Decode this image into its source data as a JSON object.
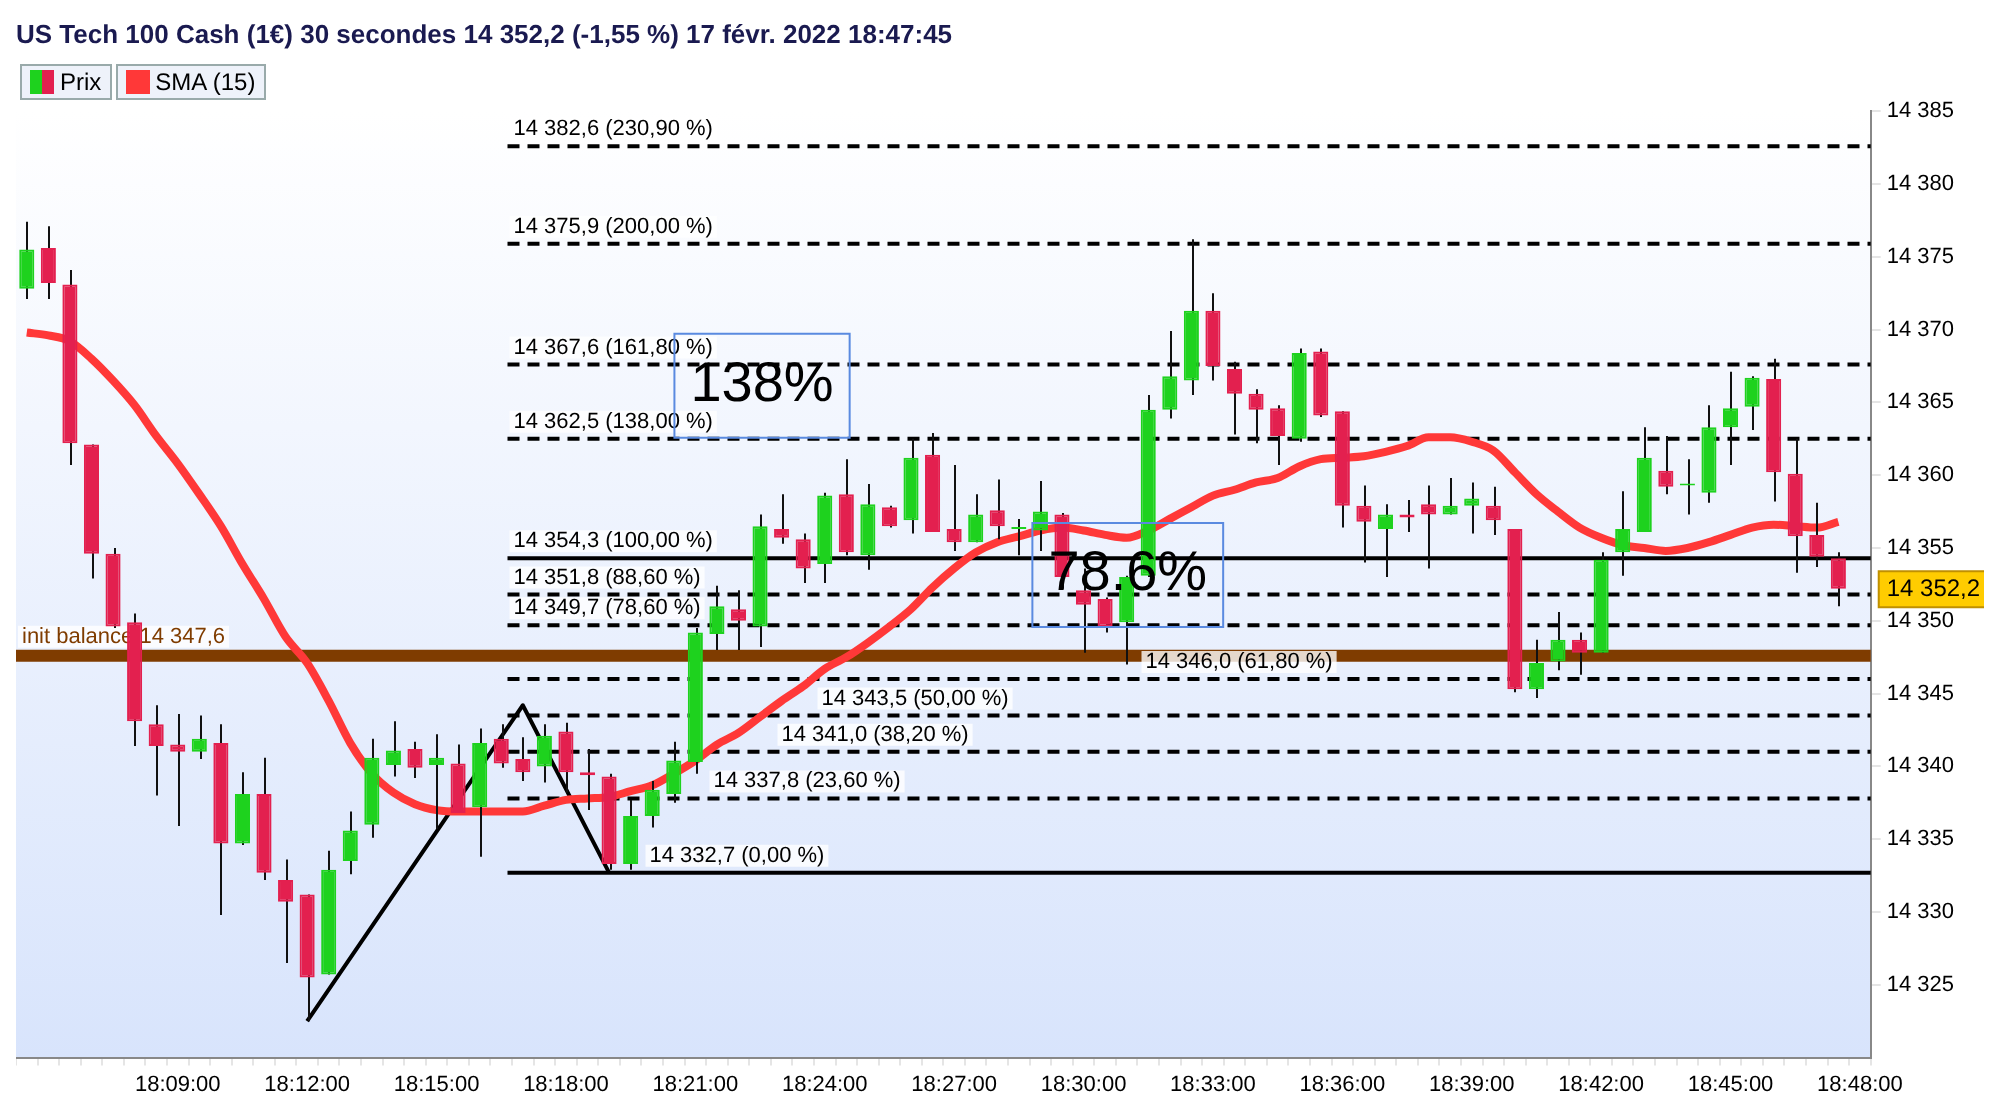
{
  "chart_data": {
    "type": "candlestick",
    "title": "US Tech 100 Cash (1€) 30 secondes 14 352,2 (-1,55 %) 17 févr. 2022 18:47:45",
    "categories": [
      null,
      null,
      null,
      null,
      null,
      null,
      null,
      "18:09:00",
      null,
      null,
      null,
      null,
      null,
      "18:12:00",
      null,
      null,
      null,
      null,
      null,
      "18:15:00",
      null,
      null,
      null,
      null,
      null,
      "18:18:00",
      null,
      null,
      null,
      null,
      null,
      "18:21:00",
      null,
      null,
      null,
      null,
      null,
      "18:24:00",
      null,
      null,
      null,
      null,
      null,
      "18:27:00",
      null,
      null,
      null,
      null,
      null,
      "18:30:00",
      null,
      null,
      null,
      null,
      null,
      "18:33:00",
      null,
      null,
      null,
      null,
      null,
      "18:36:00",
      null,
      null,
      null,
      null,
      null,
      "18:39:00",
      null,
      null,
      null,
      null,
      null,
      "18:42:00",
      null,
      null,
      null,
      null,
      null,
      "18:45:00",
      null,
      null,
      null,
      null,
      null,
      "18:48:00"
    ],
    "series": [
      {
        "name": "Prix",
        "type": "candlestick",
        "colors": [
          "#1ed21e",
          "#e3204f",
          "#e3204f",
          "#e3204f",
          "#e3204f",
          "#e3204f",
          "#e3204f",
          "#e3204f",
          "#1ed21e",
          "#e3204f",
          "#1ed21e",
          "#e3204f",
          "#e3204f",
          "#e3204f",
          "#1ed21e",
          "#1ed21e",
          "#1ed21e",
          "#1ed21e",
          "#e3204f",
          "#1ed21e",
          "#e3204f",
          "#1ed21e",
          "#e3204f",
          "#e3204f",
          "#1ed21e",
          "#e3204f",
          "#e3204f",
          "#e3204f",
          "#1ed21e",
          "#1ed21e",
          "#1ed21e",
          "#1ed21e",
          "#1ed21e",
          "#e3204f",
          "#1ed21e",
          "#e3204f",
          "#e3204f",
          "#1ed21e",
          "#e3204f",
          "#1ed21e",
          "#e3204f",
          "#1ed21e",
          "#e3204f",
          "#e3204f",
          "#1ed21e",
          "#e3204f",
          "#1ed21e",
          "#1ed21e",
          "#e3204f",
          "#e3204f",
          "#e3204f",
          "#1ed21e",
          "#1ed21e",
          "#1ed21e",
          "#1ed21e",
          "#e3204f",
          "#e3204f",
          "#e3204f",
          "#e3204f",
          "#1ed21e",
          "#e3204f",
          "#e3204f",
          "#e3204f",
          "#1ed21e",
          "#e3204f",
          "#e3204f",
          "#1ed21e",
          "#1ed21e",
          "#e3204f",
          "#e3204f",
          "#1ed21e",
          "#1ed21e",
          "#e3204f",
          "#1ed21e",
          "#1ed21e",
          "#1ed21e",
          "#e3204f",
          "#1ed21e",
          "#1ed21e",
          "#1ed21e",
          "#1ed21e",
          "#e3204f",
          "#e3204f",
          "#e3204f",
          "#e3204f",
          null
        ],
        "ohlc": [
          [
            14372.8,
            14377.4,
            14372.1,
            14375.5
          ],
          [
            14375.6,
            14377.1,
            14372.1,
            14373.2
          ],
          [
            14373.1,
            14374.1,
            14360.7,
            14362.2
          ],
          [
            14362.1,
            14362.1,
            14352.9,
            14354.6
          ],
          [
            14354.6,
            14355.0,
            14349.5,
            14349.6
          ],
          [
            14349.9,
            14350.5,
            14341.4,
            14343.1
          ],
          [
            14342.9,
            14344.2,
            14338.0,
            14341.4
          ],
          [
            14341.5,
            14343.6,
            14335.9,
            14341.0
          ],
          [
            14341.0,
            14343.5,
            14340.5,
            14341.9
          ],
          [
            14341.6,
            14342.9,
            14329.8,
            14334.7
          ],
          [
            14334.7,
            14339.6,
            14334.6,
            14338.1
          ],
          [
            14338.1,
            14340.6,
            14332.2,
            14332.7
          ],
          [
            14332.2,
            14333.6,
            14326.5,
            14330.7
          ],
          [
            14331.2,
            14331.2,
            14322.5,
            14325.5
          ],
          [
            14325.7,
            14334.2,
            14325.7,
            14332.9
          ],
          [
            14333.5,
            14336.9,
            14332.6,
            14335.6
          ],
          [
            14336.0,
            14341.9,
            14335.1,
            14340.6
          ],
          [
            14340.1,
            14343.1,
            14339.3,
            14341.1
          ],
          [
            14341.2,
            14341.7,
            14339.2,
            14339.9
          ],
          [
            14340.1,
            14342.2,
            14335.7,
            14340.6
          ],
          [
            14340.2,
            14341.5,
            14336.8,
            14336.8
          ],
          [
            14337.2,
            14342.6,
            14333.8,
            14341.6
          ],
          [
            14341.9,
            14342.9,
            14339.9,
            14340.2
          ],
          [
            14340.5,
            14342.0,
            14339.0,
            14339.6
          ],
          [
            14340.0,
            14342.9,
            14338.9,
            14342.1
          ],
          [
            14342.4,
            14343.0,
            14338.2,
            14339.6
          ],
          [
            14339.6,
            14341.2,
            14337.0,
            14339.4
          ],
          [
            14339.3,
            14339.5,
            14332.9,
            14333.3
          ],
          [
            14333.3,
            14337.7,
            14332.9,
            14336.6
          ],
          [
            14336.6,
            14339.0,
            14335.8,
            14338.4
          ],
          [
            14338.1,
            14341.7,
            14337.5,
            14340.4
          ],
          [
            14340.3,
            14349.5,
            14339.5,
            14349.2
          ],
          [
            14349.1,
            14352.4,
            14348.0,
            14351.0
          ],
          [
            14350.8,
            14352.1,
            14348.0,
            14350.0
          ],
          [
            14349.6,
            14357.3,
            14348.2,
            14356.5
          ],
          [
            14356.3,
            14358.7,
            14355.3,
            14355.7
          ],
          [
            14355.6,
            14356.0,
            14352.6,
            14353.6
          ],
          [
            14353.9,
            14358.8,
            14352.6,
            14358.6
          ],
          [
            14358.7,
            14361.1,
            14354.5,
            14354.7
          ],
          [
            14354.5,
            14359.4,
            14353.5,
            14358.0
          ],
          [
            14357.8,
            14357.9,
            14356.4,
            14356.5
          ],
          [
            14356.9,
            14362.5,
            14356.0,
            14361.2
          ],
          [
            14361.4,
            14362.9,
            14356.1,
            14356.1
          ],
          [
            14356.3,
            14360.7,
            14354.8,
            14355.4
          ],
          [
            14355.4,
            14358.7,
            14355.4,
            14357.3
          ],
          [
            14357.6,
            14359.7,
            14355.6,
            14356.5
          ],
          [
            14356.3,
            14357.0,
            14354.5,
            14356.3
          ],
          [
            14356.2,
            14359.6,
            14354.8,
            14357.5
          ],
          [
            14357.3,
            14357.4,
            14352.2,
            14353.0
          ],
          [
            14352.1,
            14353.6,
            14347.8,
            14351.1
          ],
          [
            14351.5,
            14351.6,
            14349.2,
            14349.6
          ],
          [
            14349.9,
            14353.1,
            14347.0,
            14353.0
          ],
          [
            14353.1,
            14365.5,
            14353.0,
            14364.5
          ],
          [
            14364.5,
            14369.9,
            14363.9,
            14366.8
          ],
          [
            14366.5,
            14376.2,
            14365.5,
            14371.3
          ],
          [
            14371.3,
            14372.5,
            14366.5,
            14367.5
          ],
          [
            14367.3,
            14367.8,
            14362.8,
            14365.6
          ],
          [
            14365.6,
            14365.9,
            14362.2,
            14364.5
          ],
          [
            14364.6,
            14364.8,
            14360.7,
            14362.7
          ],
          [
            14362.5,
            14368.7,
            14362.3,
            14368.4
          ],
          [
            14368.5,
            14368.7,
            14364.0,
            14364.1
          ],
          [
            14364.4,
            14364.4,
            14356.4,
            14357.9
          ],
          [
            14357.9,
            14359.3,
            14354.0,
            14356.8
          ],
          [
            14356.3,
            14358.0,
            14353.0,
            14357.3
          ],
          [
            14357.3,
            14358.3,
            14356.1,
            14357.1
          ],
          [
            14358.0,
            14359.3,
            14353.6,
            14357.3
          ],
          [
            14357.3,
            14359.8,
            14357.3,
            14357.9
          ],
          [
            14357.9,
            14359.5,
            14356.0,
            14358.4
          ],
          [
            14357.9,
            14359.2,
            14355.9,
            14356.9
          ],
          [
            14356.3,
            14356.3,
            14345.1,
            14345.3
          ],
          [
            14345.3,
            14348.7,
            14344.7,
            14347.1
          ],
          [
            14347.2,
            14350.6,
            14346.6,
            14348.7
          ],
          [
            14348.7,
            14349.2,
            14346.3,
            14347.8
          ],
          [
            14347.8,
            14354.7,
            14347.8,
            14354.2
          ],
          [
            14354.7,
            14358.9,
            14353.1,
            14356.3
          ],
          [
            14356.1,
            14363.3,
            14356.1,
            14361.2
          ],
          [
            14360.3,
            14362.7,
            14358.7,
            14359.2
          ],
          [
            14359.3,
            14361.1,
            14357.3,
            14359.3
          ],
          [
            14358.8,
            14364.8,
            14358.1,
            14363.3
          ],
          [
            14363.3,
            14367.1,
            14360.7,
            14364.6
          ],
          [
            14364.7,
            14366.8,
            14363.1,
            14366.7
          ],
          [
            14366.6,
            14368.0,
            14358.2,
            14360.2
          ],
          [
            14360.1,
            14362.5,
            14353.3,
            14355.8
          ],
          [
            14355.9,
            14358.1,
            14353.7,
            14354.4
          ],
          [
            14354.3,
            14354.7,
            14351.0,
            14352.2
          ],
          null
        ]
      },
      {
        "name": "SMA (15)",
        "type": "line",
        "color": "#ff3838",
        "values": [
          14369.8,
          14369.6,
          14369.2,
          14368.0,
          14366.5,
          14364.8,
          14362.7,
          14360.8,
          14358.7,
          14356.5,
          14353.9,
          14351.5,
          14348.9,
          14347.1,
          14344.5,
          14341.6,
          14339.5,
          14338.2,
          14337.4,
          14337.0,
          14336.9,
          14336.9,
          14336.9,
          14336.9,
          14337.3,
          14337.7,
          14337.8,
          14337.9,
          14338.3,
          14338.7,
          14339.5,
          14340.4,
          14341.5,
          14342.3,
          14343.4,
          14344.5,
          14345.5,
          14346.7,
          14347.5,
          14348.5,
          14349.6,
          14350.8,
          14352.3,
          14353.6,
          14354.7,
          14355.4,
          14355.8,
          14356.2,
          14356.4,
          14356.2,
          14355.9,
          14355.7,
          14356.2,
          14357.0,
          14357.8,
          14358.6,
          14359.0,
          14359.5,
          14359.8,
          14360.6,
          14361.1,
          14361.2,
          14361.3,
          14361.6,
          14362.0,
          14362.6,
          14362.6,
          14362.3,
          14361.7,
          14360.2,
          14358.7,
          14357.5,
          14356.4,
          14355.7,
          14355.2,
          14355.0,
          14354.8,
          14355.0,
          14355.4,
          14355.9,
          14356.4,
          14356.6,
          14356.5,
          14356.4,
          14356.8,
          null
        ]
      },
      {
        "type": "line",
        "color": "#000000",
        "values": [
          null,
          null,
          null,
          null,
          null,
          null,
          null,
          null,
          null,
          null,
          null,
          null,
          null,
          14322.5,
          null,
          null,
          null,
          null,
          null,
          null,
          null,
          null,
          null,
          14344.2,
          null,
          null,
          null,
          14332.7,
          null,
          null,
          null,
          null,
          null,
          null,
          null,
          null,
          null,
          null,
          null,
          null,
          null,
          null,
          null,
          null,
          null,
          null,
          null,
          null,
          null,
          null,
          null,
          null,
          null,
          null,
          null,
          null,
          null,
          null,
          null,
          null,
          null,
          null,
          null,
          null,
          null,
          null,
          null,
          null,
          null,
          null,
          null,
          null,
          null,
          null,
          null,
          null,
          null,
          null,
          null,
          null,
          null,
          null,
          null,
          null,
          null,
          null
        ]
      }
    ],
    "ylim": [
      14320,
      14385
    ],
    "yticks": [
      {
        "value": 14325,
        "label": "14 325"
      },
      {
        "value": 14330,
        "label": "14 330"
      },
      {
        "value": 14335,
        "label": "14 335"
      },
      {
        "value": 14340,
        "label": "14 340"
      },
      {
        "value": 14345,
        "label": "14 345"
      },
      {
        "value": 14350,
        "label": "14 350"
      },
      {
        "value": 14355,
        "label": "14 355"
      },
      {
        "value": 14360,
        "label": "14 360"
      },
      {
        "value": 14365,
        "label": "14 365"
      },
      {
        "value": 14370,
        "label": "14 370"
      },
      {
        "value": 14375,
        "label": "14 375"
      },
      {
        "value": 14380,
        "label": "14 380"
      },
      {
        "value": 14385,
        "label": "14 385"
      }
    ],
    "ref_lines": [
      {
        "axis": "y",
        "value": 14347.6,
        "label": "init balance 14 347,6",
        "color": "#7f3c00",
        "line_style": "solid"
      },
      {
        "axis": "y",
        "value": 14382.6,
        "label": "14 382,6 (230,90 %)",
        "color": "#000000",
        "line_style": "dashed"
      },
      {
        "axis": "y",
        "value": 14375.9,
        "label": "14 375,9 (200,00 %)",
        "color": "#000000",
        "line_style": "dashed"
      },
      {
        "axis": "y",
        "value": 14367.6,
        "label": "14 367,6 (161,80 %)",
        "color": "#000000",
        "line_style": "dashed"
      },
      {
        "axis": "y",
        "value": 14362.5,
        "label": "14 362,5 (138,00 %)",
        "color": "#000000",
        "line_style": "dashed"
      },
      {
        "axis": "y",
        "value": 14354.3,
        "label": "14 354,3 (100,00 %)",
        "color": "#000000",
        "line_style": "solid"
      },
      {
        "axis": "y",
        "value": 14351.8,
        "label": "14 351,8 (88,60 %)",
        "color": "#000000",
        "line_style": "dashed"
      },
      {
        "axis": "y",
        "value": 14349.7,
        "label": "14 349,7 (78,60 %)",
        "color": "#000000",
        "line_style": "dashed"
      },
      {
        "axis": "y",
        "value": 14346.0,
        "label": "14 346,0 (61,80 %)",
        "color": "#000000",
        "line_style": "dashed"
      },
      {
        "axis": "y",
        "value": 14343.5,
        "label": "14 343,5 (50,00 %)",
        "color": "#000000",
        "line_style": "dashed"
      },
      {
        "axis": "y",
        "value": 14341.0,
        "label": "14 341,0 (38,20 %)",
        "color": "#000000",
        "line_style": "dashed"
      },
      {
        "axis": "y",
        "value": 14337.8,
        "label": "14 337,8 (23,60 %)",
        "color": "#000000",
        "line_style": "dashed"
      },
      {
        "axis": "y",
        "value": 14332.7,
        "label": "14 332,7 (0,00 %)",
        "color": "#000000",
        "line_style": "solid"
      }
    ],
    "annotations": [
      "138%",
      "78.6%",
      "14 352,2"
    ],
    "legend": "top left"
  }
}
